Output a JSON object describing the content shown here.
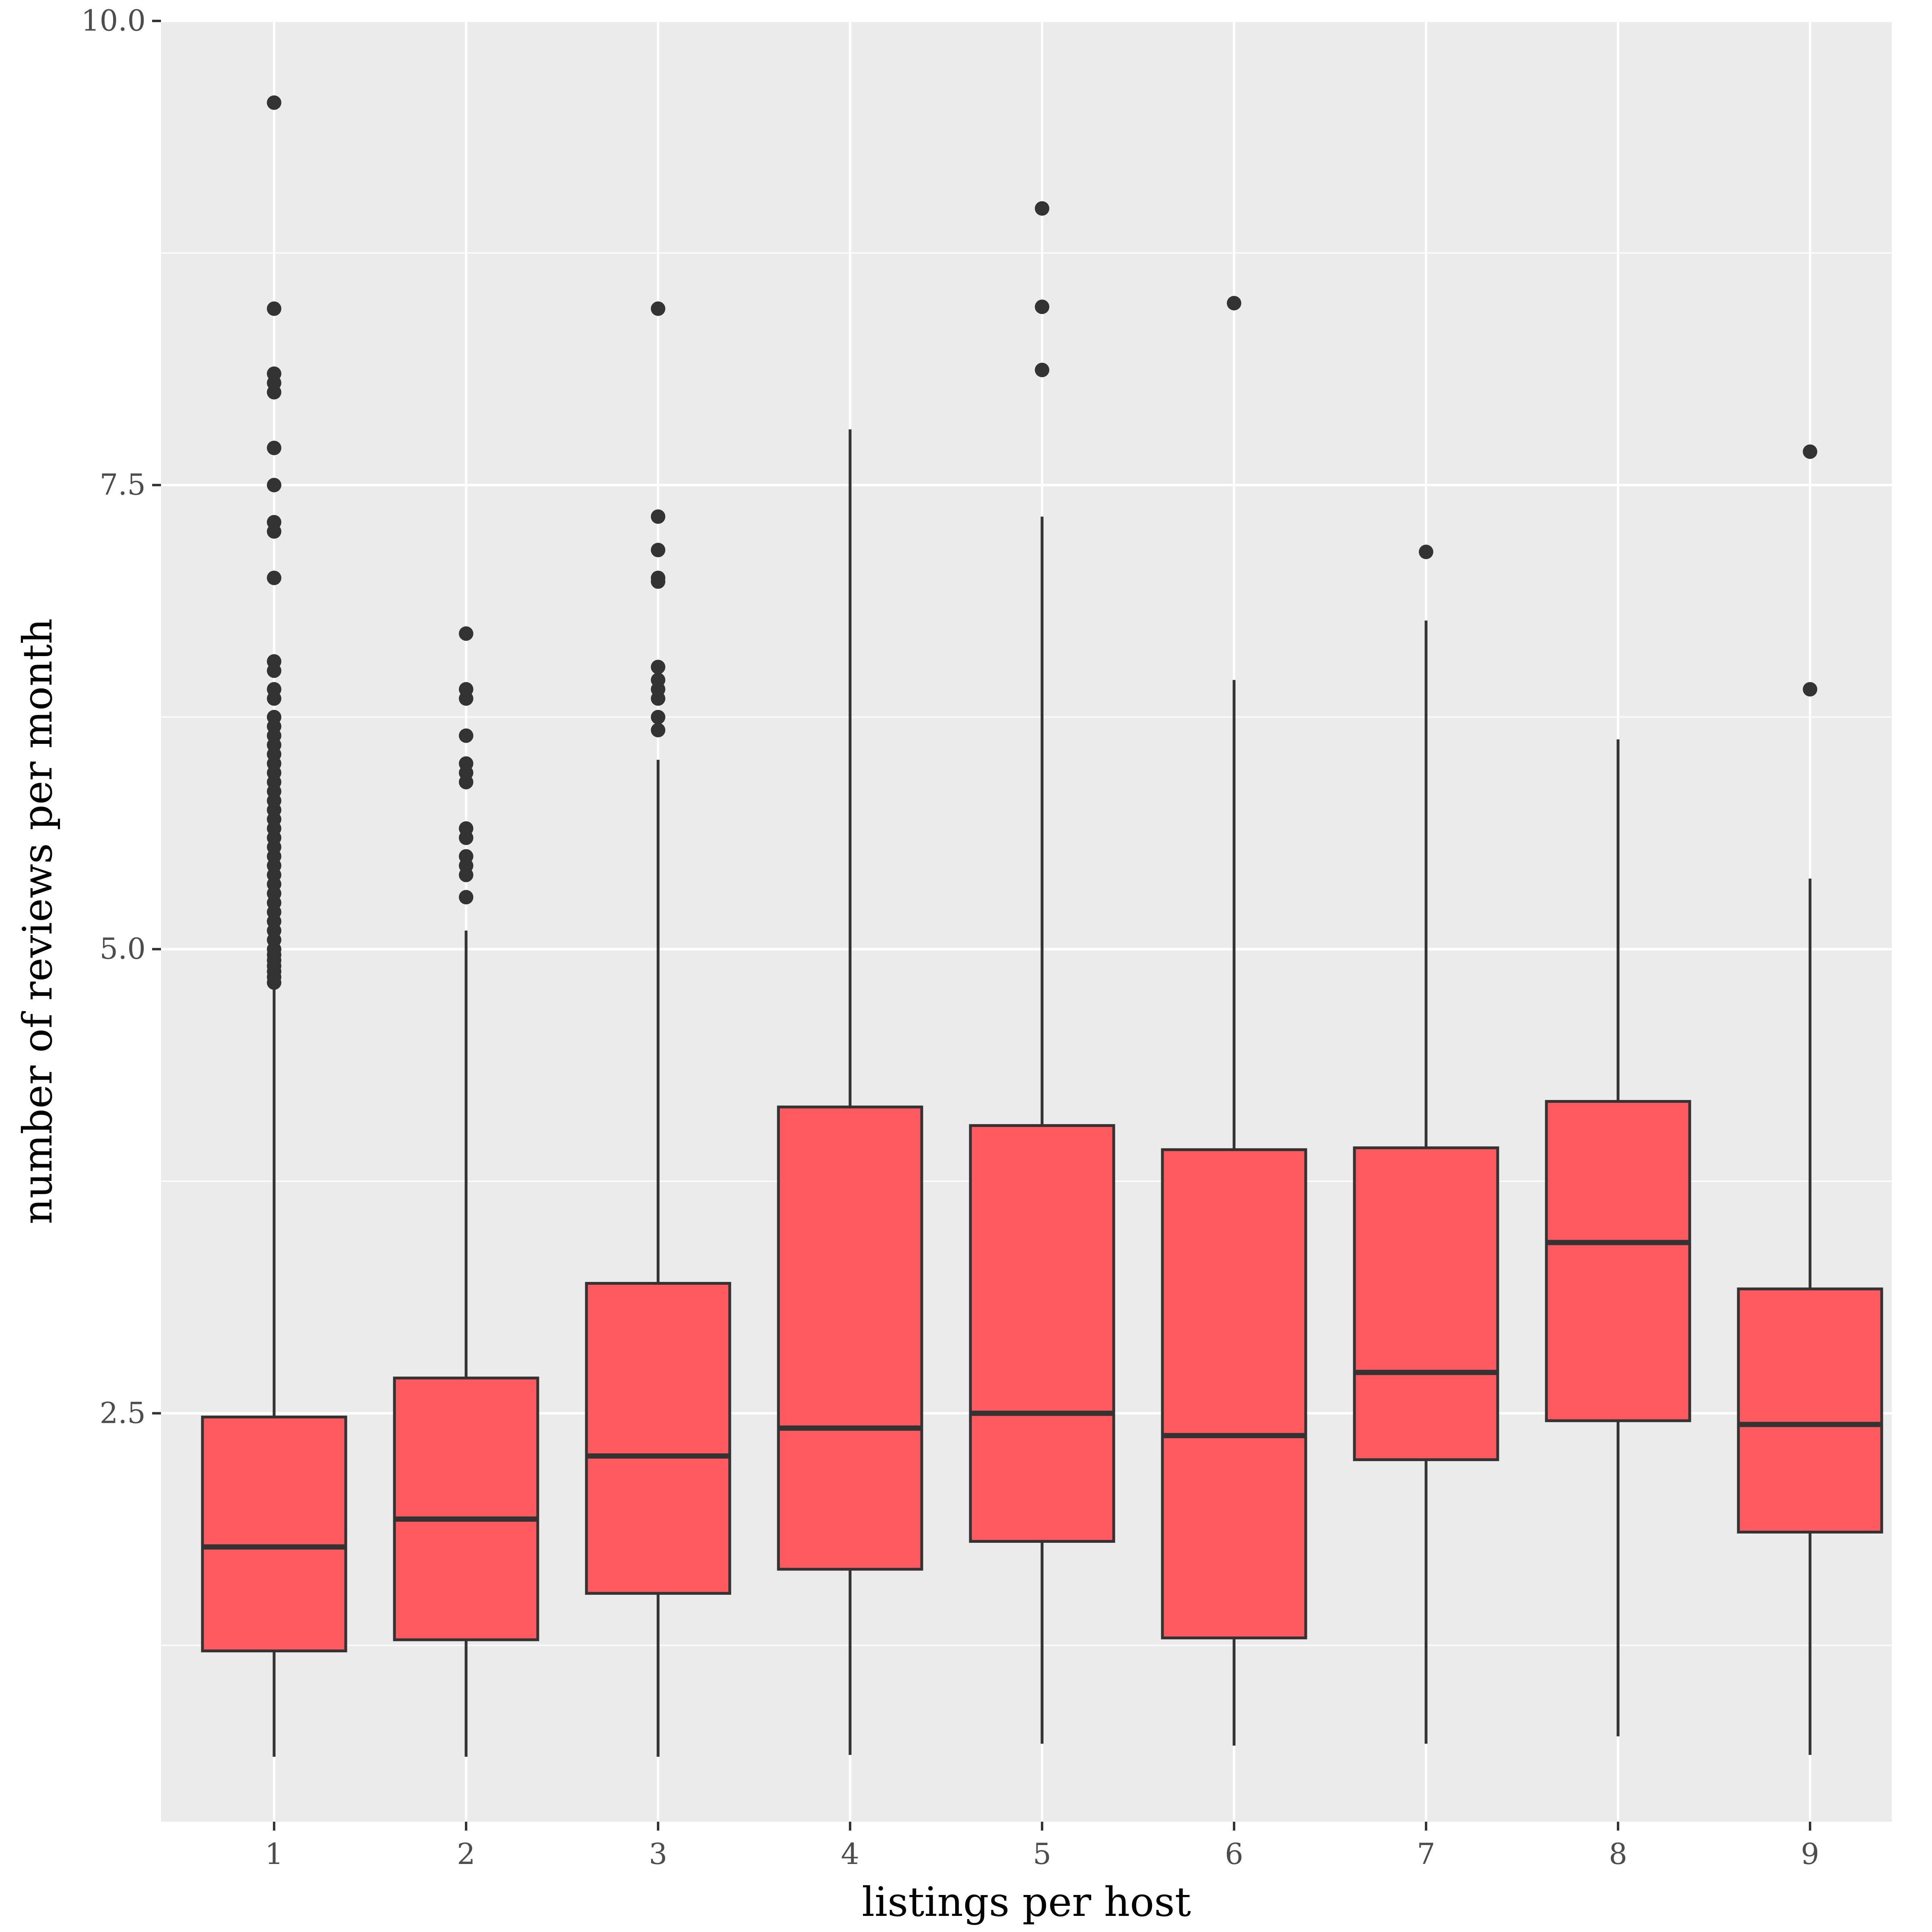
{
  "chart_data": {
    "type": "boxplot",
    "title": "",
    "xlabel": "listings per host",
    "ylabel": "number of reviews per month",
    "ylim": [
      0.3,
      10.0
    ],
    "yticks": [
      2.5,
      5.0,
      7.5,
      10.0
    ],
    "ytick_labels": [
      "2.5",
      "5.0",
      "7.5",
      "10.0"
    ],
    "grid": true,
    "colors": {
      "panel": "#ebebeb",
      "grid": "#ffffff",
      "box_fill": "#ff5a5f",
      "box_line": "#333333"
    },
    "categories": [
      "1",
      "2",
      "3",
      "4",
      "5",
      "6",
      "7",
      "8",
      "9"
    ],
    "boxes": [
      {
        "x": "1",
        "whisker_low": 0.65,
        "q1": 1.22,
        "median": 1.78,
        "q3": 2.48,
        "whisker_high": 4.88,
        "outliers": [
          9.56,
          8.45,
          8.1,
          8.05,
          8.0,
          7.7,
          7.5,
          7.3,
          7.25,
          7.0,
          6.55,
          6.5,
          6.4,
          6.35,
          6.25,
          6.2,
          6.15,
          6.1,
          6.05,
          6.0,
          5.95,
          5.9,
          5.85,
          5.8,
          5.75,
          5.7,
          5.65,
          5.6,
          5.55,
          5.5,
          5.45,
          5.4,
          5.35,
          5.3,
          5.25,
          5.2,
          5.15,
          5.1,
          5.05,
          5.0,
          4.97,
          4.94,
          4.91,
          4.88,
          4.85,
          4.82
        ]
      },
      {
        "x": "2",
        "whisker_low": 0.65,
        "q1": 1.28,
        "median": 1.93,
        "q3": 2.69,
        "whisker_high": 5.1,
        "outliers": [
          6.7,
          6.4,
          6.35,
          6.15,
          6.0,
          5.95,
          5.9,
          5.65,
          5.6,
          5.5,
          5.45,
          5.4,
          5.28
        ]
      },
      {
        "x": "3",
        "whisker_low": 0.65,
        "q1": 1.53,
        "median": 2.27,
        "q3": 3.2,
        "whisker_high": 6.02,
        "outliers": [
          8.45,
          7.33,
          7.15,
          7.0,
          6.98,
          6.52,
          6.45,
          6.4,
          6.35,
          6.25,
          6.18
        ]
      },
      {
        "x": "4",
        "whisker_low": 0.66,
        "q1": 1.66,
        "median": 2.42,
        "q3": 4.15,
        "whisker_high": 7.8,
        "outliers": []
      },
      {
        "x": "5",
        "whisker_low": 0.72,
        "q1": 1.81,
        "median": 2.5,
        "q3": 4.05,
        "whisker_high": 7.33,
        "outliers": [
          8.99,
          8.46,
          8.12
        ]
      },
      {
        "x": "6",
        "whisker_low": 0.71,
        "q1": 1.29,
        "median": 2.38,
        "q3": 3.92,
        "whisker_high": 6.45,
        "outliers": [
          8.48
        ]
      },
      {
        "x": "7",
        "whisker_low": 0.72,
        "q1": 2.25,
        "median": 2.72,
        "q3": 3.93,
        "whisker_high": 6.77,
        "outliers": [
          7.14
        ]
      },
      {
        "x": "8",
        "whisker_low": 0.76,
        "q1": 2.46,
        "median": 3.42,
        "q3": 4.18,
        "whisker_high": 6.13,
        "outliers": []
      },
      {
        "x": "9",
        "whisker_low": 0.66,
        "q1": 1.86,
        "median": 2.44,
        "q3": 3.17,
        "whisker_high": 5.38,
        "outliers": [
          7.68,
          6.4
        ]
      }
    ]
  }
}
